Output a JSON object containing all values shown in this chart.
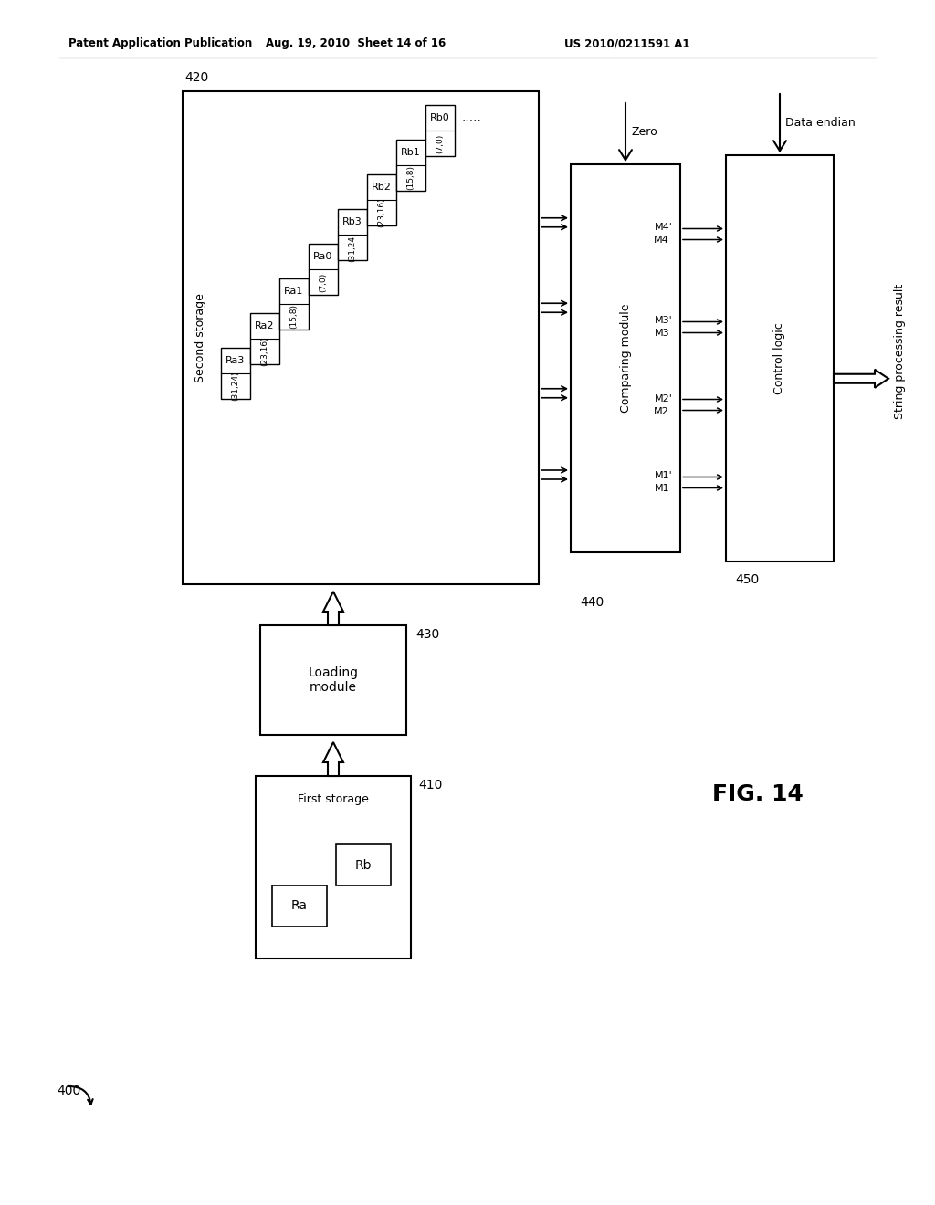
{
  "header_left": "Patent Application Publication",
  "header_center": "Aug. 19, 2010  Sheet 14 of 16",
  "header_right": "US 2010/0211591 A1",
  "fig_label": "FIG. 14",
  "bg_color": "#ffffff",
  "label_400": "400",
  "label_410": "410",
  "label_420": "420",
  "label_430": "430",
  "label_440": "440",
  "label_450": "450",
  "first_storage_label": "First storage",
  "second_storage_label": "Second storage",
  "loading_module_label": "Loading\nmodule",
  "comparing_module_label": "Comparing module",
  "control_logic_label": "Control logic",
  "ra_label": "Ra",
  "rb_label": "Rb",
  "zero_label": "Zero",
  "data_endian_label": "Data endian",
  "string_result_label": "String processing result",
  "ra_cols": [
    "Ra3",
    "Ra2",
    "Ra1",
    "Ra0"
  ],
  "rb_cols": [
    "Rb3",
    "Rb2",
    "Rb1",
    "Rb0"
  ],
  "ra_ranges": [
    "(31,24)",
    "(23,16)",
    "(15,8)",
    "(7,0)"
  ],
  "rb_ranges": [
    "(31,24)",
    "(23,16)",
    "(15,8)",
    "(7,0)"
  ],
  "m_labels_bottom": [
    "M1",
    "M2",
    "M3",
    "M4"
  ],
  "m_labels_top": [
    "M1'",
    "M2'",
    "M3'",
    "M4'"
  ],
  "ellipsis": "....."
}
